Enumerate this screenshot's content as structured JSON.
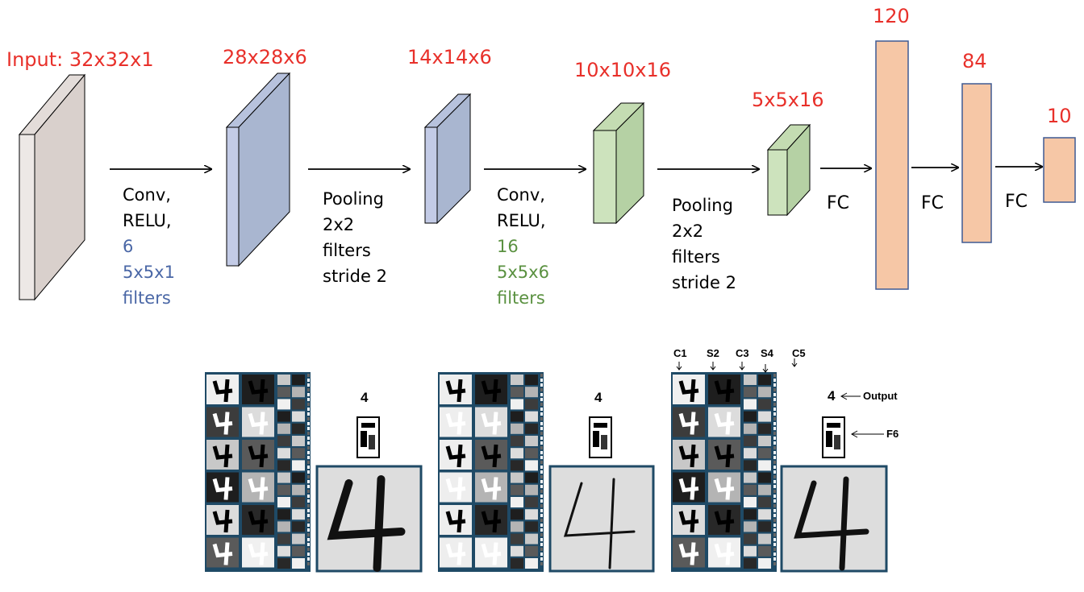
{
  "layers": {
    "input": "Input: 32x32x1",
    "c1": "28x28x6",
    "s2": "14x14x6",
    "c3": "10x10x16",
    "s4": "5x5x16",
    "f5": "120",
    "f6": "84",
    "out": "10"
  },
  "ops": {
    "conv1": {
      "l1": "Conv,",
      "l2": "RELU,",
      "l3": "6",
      "l4": "5x5x1",
      "l5": "filters"
    },
    "pool1": {
      "l1": "Pooling",
      "l2": "2x2",
      "l3": "filters",
      "l4": "stride 2"
    },
    "conv2": {
      "l1": "Conv,",
      "l2": "RELU,",
      "l3": "16",
      "l4": "5x5x6",
      "l5": "filters"
    },
    "pool2": {
      "l1": "Pooling",
      "l2": "2x2",
      "l3": "filters",
      "l4": "stride 2"
    },
    "fc1": "FC",
    "fc2": "FC",
    "fc3": "FC"
  },
  "visual": {
    "digit_labels": [
      "4",
      "4",
      "4"
    ],
    "layer_tags": [
      "C1",
      "S2",
      "C3",
      "S4",
      "C5"
    ],
    "output_label": "Output",
    "f6_label": "F6"
  },
  "colors": {
    "label_red": "#e8302a",
    "input_face": "#d9d0cc",
    "blue_face": "#a9b6d0",
    "blue_front": "#c3cbe6",
    "green_face": "#b5d1a4",
    "green_front": "#cde3bd",
    "fc_fill": "#f6c7a6",
    "fc_stroke": "#3f5a94",
    "text_blue": "#4a67a6",
    "text_green": "#5a9140"
  }
}
